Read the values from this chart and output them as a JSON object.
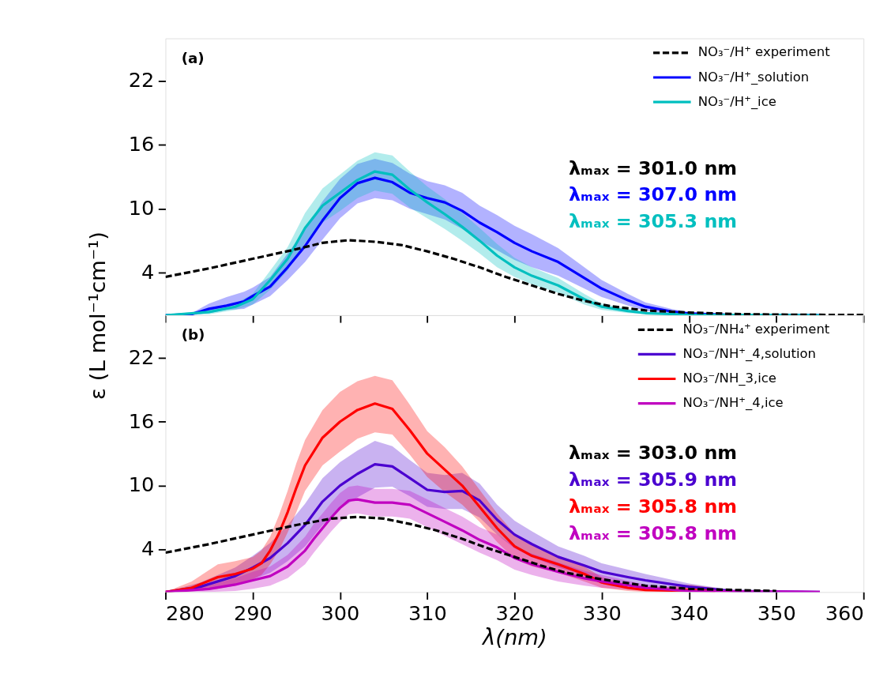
{
  "chart_data": [
    {
      "type": "line",
      "xlim": [
        280,
        360
      ],
      "ylim": [
        0,
        26
      ],
      "xticks": [
        280,
        290,
        300,
        310,
        320,
        330,
        340,
        350,
        360
      ],
      "yticks": [
        4,
        10,
        16,
        22
      ],
      "tick_labels": "y",
      "grid": false,
      "legend": "top right",
      "annotations": [
        "(a)",
        "λₘₐₓ = 301.0 nm",
        "λₘₐₓ = 307.0 nm",
        "λₘₐₓ = 305.3 nm"
      ],
      "series": [
        {
          "name": "NO₃⁻/H⁺ experiment",
          "color": "#000000",
          "line_style": "dashed",
          "x": [
            280,
            285,
            290,
            295,
            298,
            301,
            304,
            307,
            310,
            313,
            316,
            319,
            322,
            325,
            328,
            331,
            335,
            340,
            345,
            350,
            360
          ],
          "values": [
            3.6,
            4.4,
            5.3,
            6.2,
            6.8,
            7.05,
            6.9,
            6.6,
            6.0,
            5.3,
            4.5,
            3.6,
            2.8,
            2.0,
            1.35,
            0.85,
            0.45,
            0.25,
            0.12,
            0.06,
            0.02
          ]
        },
        {
          "name": "NO₃⁻/H⁺_solution",
          "color": "#0000ff",
          "x": [
            280,
            283,
            285,
            287,
            289,
            290,
            292,
            294,
            296,
            298,
            300,
            302,
            304,
            306,
            308,
            310,
            312,
            314,
            316,
            318,
            320,
            322,
            325,
            328,
            330,
            333,
            335,
            338,
            340,
            345,
            355
          ],
          "values": [
            0,
            0.1,
            0.6,
            0.9,
            1.3,
            1.8,
            2.7,
            4.5,
            6.5,
            8.9,
            11.0,
            12.4,
            12.9,
            12.5,
            11.5,
            11.0,
            10.6,
            9.8,
            8.7,
            7.8,
            6.8,
            6.0,
            5.0,
            3.5,
            2.5,
            1.4,
            0.8,
            0.35,
            0.15,
            0.03,
            0
          ],
          "lower": [
            0,
            0,
            0.2,
            0.5,
            0.6,
            1.0,
            1.8,
            3.3,
            5.0,
            7.1,
            9.1,
            10.5,
            11.0,
            10.8,
            10.0,
            9.5,
            9.0,
            8.1,
            7.0,
            6.1,
            5.2,
            4.5,
            3.7,
            2.5,
            1.7,
            0.9,
            0.4,
            0.15,
            0.05,
            0,
            0
          ],
          "upper": [
            0,
            0.2,
            1.1,
            1.7,
            2.2,
            2.6,
            3.6,
            5.8,
            8.0,
            10.7,
            12.8,
            14.2,
            14.7,
            14.3,
            13.3,
            12.6,
            12.2,
            11.5,
            10.3,
            9.4,
            8.4,
            7.6,
            6.3,
            4.5,
            3.3,
            2.0,
            1.2,
            0.6,
            0.3,
            0.08,
            0
          ]
        },
        {
          "name": "NO₃⁻/H⁺_ice",
          "color": "#00bfbf",
          "x": [
            280,
            285,
            288,
            290,
            292,
            294,
            296,
            298,
            300,
            302,
            304,
            306,
            308,
            310,
            312,
            314,
            316,
            318,
            320,
            322,
            325,
            328,
            330,
            333,
            335,
            340,
            355
          ],
          "values": [
            0,
            0.3,
            0.8,
            1.5,
            3.3,
            5.3,
            8.2,
            10.3,
            11.5,
            12.7,
            13.5,
            13.2,
            11.8,
            10.6,
            9.5,
            8.3,
            7.0,
            5.6,
            4.5,
            3.7,
            2.8,
            1.5,
            0.8,
            0.4,
            0.2,
            0.05,
            0
          ],
          "lower": [
            0,
            0.1,
            0.5,
            1.0,
            2.4,
            4.2,
            6.8,
            8.7,
            9.8,
            11.0,
            11.7,
            11.4,
            10.1,
            9.1,
            8.1,
            7.0,
            5.8,
            4.5,
            3.6,
            2.9,
            2.1,
            1.0,
            0.5,
            0.2,
            0.1,
            0,
            0
          ],
          "upper": [
            0,
            0.5,
            1.1,
            2.0,
            4.2,
            6.4,
            9.6,
            11.9,
            13.2,
            14.5,
            15.3,
            15.0,
            13.5,
            12.1,
            10.9,
            9.6,
            8.2,
            6.7,
            5.4,
            4.5,
            3.5,
            2.0,
            1.1,
            0.6,
            0.3,
            0.1,
            0
          ]
        }
      ]
    },
    {
      "type": "line",
      "xlabel": "λ(nm)",
      "ylabel": "ε (L mol⁻¹cm⁻¹)",
      "xlim": [
        280,
        360
      ],
      "ylim": [
        0,
        26
      ],
      "xticks": [
        280,
        290,
        300,
        310,
        320,
        330,
        340,
        350,
        360
      ],
      "yticks": [
        4,
        10,
        16,
        22
      ],
      "grid": false,
      "legend": "top right",
      "annotations": [
        "(b)",
        "λₘₐₓ = 303.0 nm",
        "λₘₐₓ = 305.9 nm",
        "λₘₐₓ = 305.8 nm",
        "λₘₐₓ = 305.8 nm"
      ],
      "series": [
        {
          "name": "NO₃⁻/NH₄⁺ experiment",
          "color": "#000000",
          "line_style": "dashed",
          "x": [
            280,
            285,
            290,
            295,
            299,
            302,
            305,
            308,
            311,
            314,
            317,
            320,
            323,
            326,
            330,
            335,
            340,
            350
          ],
          "values": [
            3.7,
            4.5,
            5.4,
            6.3,
            6.9,
            7.05,
            6.9,
            6.4,
            5.8,
            5.0,
            4.1,
            3.3,
            2.5,
            1.8,
            1.2,
            0.6,
            0.3,
            0.1
          ]
        },
        {
          "name": "NO₃⁻/NH⁺_4,solution",
          "color": "#4b00d0",
          "x": [
            280,
            284,
            286,
            288,
            290,
            292,
            294,
            296,
            298,
            300,
            302,
            304,
            306,
            308,
            310,
            312,
            314,
            316,
            318,
            320,
            322,
            325,
            328,
            330,
            333,
            335,
            340,
            345,
            355
          ],
          "values": [
            0,
            0.5,
            1.0,
            1.5,
            2.3,
            3.2,
            4.6,
            6.3,
            8.5,
            10.0,
            11.1,
            12.0,
            11.8,
            10.7,
            9.6,
            9.4,
            9.5,
            8.6,
            6.8,
            5.4,
            4.5,
            3.3,
            2.5,
            1.9,
            1.4,
            1.1,
            0.5,
            0.1,
            0
          ],
          "lower": [
            0,
            0.1,
            0.4,
            0.7,
            1.2,
            1.8,
            2.9,
            4.3,
            6.3,
            7.8,
            8.9,
            9.8,
            9.9,
            9.0,
            8.0,
            7.8,
            7.8,
            7.0,
            5.4,
            4.1,
            3.3,
            2.3,
            1.6,
            1.1,
            0.7,
            0.5,
            0.2,
            0,
            0
          ],
          "upper": [
            0,
            0.9,
            1.6,
            2.3,
            3.4,
            4.6,
            6.3,
            8.3,
            10.7,
            12.2,
            13.3,
            14.2,
            13.7,
            12.4,
            11.2,
            11.0,
            11.2,
            10.2,
            8.2,
            6.7,
            5.7,
            4.3,
            3.4,
            2.7,
            2.1,
            1.7,
            0.8,
            0.2,
            0
          ]
        },
        {
          "name": "NO₃⁻/NH_3,ice",
          "color": "#ff0000",
          "x": [
            280,
            283,
            286,
            288,
            290,
            291,
            292,
            293,
            294,
            295,
            296,
            298,
            300,
            302,
            304,
            306,
            308,
            310,
            312,
            314,
            316,
            318,
            320,
            322,
            325,
            328,
            330,
            333,
            335,
            338,
            340,
            343
          ],
          "values": [
            0,
            0.4,
            1.4,
            1.7,
            2.2,
            2.7,
            3.9,
            5.5,
            7.5,
            9.8,
            11.9,
            14.5,
            16.0,
            17.1,
            17.7,
            17.2,
            15.2,
            13.0,
            11.5,
            10.0,
            8.0,
            6.0,
            4.3,
            3.4,
            2.6,
            1.7,
            0.9,
            0.4,
            0.2,
            0.15,
            0.2,
            0.1
          ],
          "lower": [
            0,
            0.1,
            0.3,
            0.6,
            1.2,
            1.6,
            2.6,
            3.9,
            5.6,
            7.5,
            9.5,
            11.9,
            13.2,
            14.4,
            15.0,
            14.8,
            12.9,
            10.8,
            9.4,
            8.2,
            6.6,
            4.7,
            3.1,
            2.4,
            1.8,
            1.0,
            0.4,
            0.1,
            0,
            0,
            0,
            0
          ],
          "upper": [
            0,
            1.0,
            2.6,
            2.9,
            3.3,
            3.9,
            5.2,
            7.2,
            9.5,
            12.1,
            14.3,
            17.1,
            18.8,
            19.8,
            20.3,
            19.9,
            17.6,
            15.1,
            13.6,
            11.8,
            9.6,
            7.4,
            5.5,
            4.4,
            3.4,
            2.4,
            1.4,
            0.7,
            0.4,
            0.5,
            0.7,
            0.4
          ]
        },
        {
          "name": "NO₃⁻/NH⁺_4,ice",
          "color": "#c000c0",
          "x": [
            280,
            285,
            288,
            290,
            292,
            294,
            296,
            297,
            298,
            299,
            300,
            301,
            302,
            304,
            306,
            308,
            310,
            312,
            314,
            316,
            318,
            320,
            322,
            325,
            328,
            330,
            335,
            340,
            355
          ],
          "values": [
            0,
            0.3,
            0.7,
            1.1,
            1.5,
            2.4,
            3.9,
            5.0,
            6.0,
            7.0,
            7.9,
            8.6,
            8.7,
            8.4,
            8.4,
            8.2,
            7.4,
            6.6,
            5.8,
            4.9,
            4.2,
            3.2,
            2.6,
            1.9,
            1.3,
            1.0,
            0.4,
            0.1,
            0
          ],
          "lower": [
            0,
            0,
            0.1,
            0.3,
            0.6,
            1.3,
            2.6,
            3.7,
            4.7,
            5.7,
            6.6,
            7.3,
            7.4,
            7.1,
            7.1,
            6.9,
            6.1,
            5.3,
            4.5,
            3.7,
            3.0,
            2.1,
            1.6,
            1.0,
            0.6,
            0.4,
            0.1,
            0,
            0
          ],
          "upper": [
            0,
            0.6,
            1.3,
            1.9,
            2.4,
            3.5,
            5.2,
            6.4,
            7.4,
            8.4,
            9.3,
            9.9,
            10.0,
            9.7,
            9.7,
            9.5,
            8.7,
            7.9,
            7.1,
            6.1,
            5.4,
            4.3,
            3.6,
            2.8,
            2.0,
            1.6,
            0.7,
            0.2,
            0
          ]
        }
      ]
    }
  ]
}
